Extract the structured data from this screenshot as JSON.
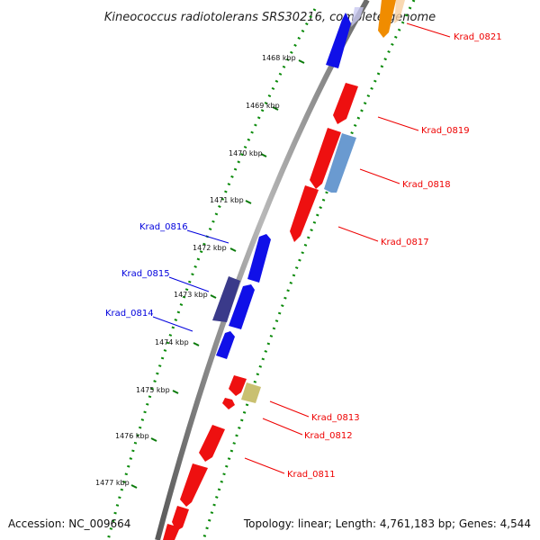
{
  "title": "Kineococcus radiotolerans SRS30216, complete genome",
  "footer": {
    "accession": "Accession: NC_009664",
    "summary": "Topology: linear; Length: 4,761,183 bp; Genes: 4,544"
  },
  "ticks": [
    "1468 kbp",
    "1469 kbp",
    "1470 kbp",
    "1471 kbp",
    "1472 kbp",
    "1473 kbp",
    "1474 kbp",
    "1475 kbp",
    "1476 kbp",
    "1477 kbp"
  ],
  "forward_strand_genes": [
    "Krad_0814",
    "Krad_0815",
    "Krad_0816"
  ],
  "reverse_strand_genes": [
    "Krad_0811",
    "Krad_0812",
    "Krad_0813",
    "Krad_0817",
    "Krad_0818",
    "Krad_0819",
    "Krad_0821"
  ],
  "colors": {
    "forward": "#0000ee",
    "reverse": "#ee0000",
    "backbone": "#808080",
    "dots": "#008000"
  }
}
